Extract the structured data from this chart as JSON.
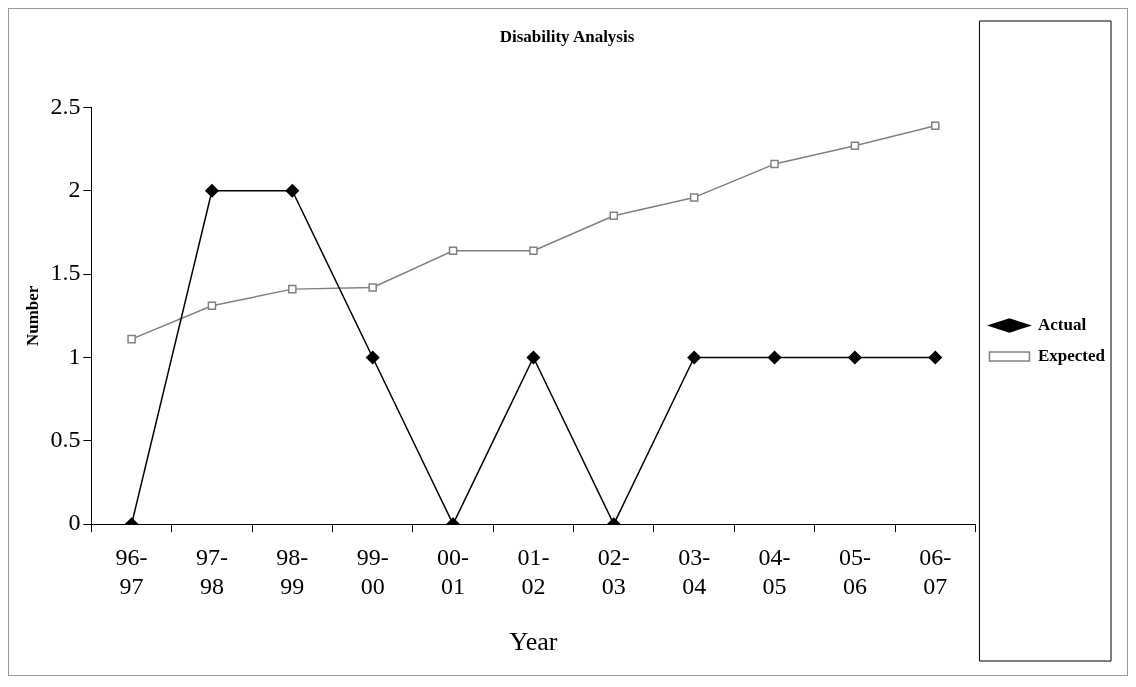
{
  "chart_data": {
    "type": "line",
    "title": "Disability Analysis",
    "xlabel": "Year",
    "ylabel": "Number",
    "categories": [
      "96-97",
      "97-98",
      "98-99",
      "99-00",
      "00-01",
      "01-02",
      "02-03",
      "03-04",
      "04-05",
      "05-06",
      "06-07"
    ],
    "series": [
      {
        "name": "Actual",
        "color": "#000000",
        "marker": "diamond",
        "values": [
          0,
          2,
          2,
          1,
          0,
          1,
          0,
          1,
          1,
          1,
          1
        ]
      },
      {
        "name": "Expected",
        "color": "#808080",
        "marker": "square",
        "values": [
          1.11,
          1.31,
          1.41,
          1.42,
          1.64,
          1.64,
          1.85,
          1.96,
          2.16,
          2.27,
          2.39
        ]
      }
    ],
    "ylim": [
      0,
      2.5
    ],
    "yticks": [
      0,
      0.5,
      1,
      1.5,
      2,
      2.5
    ],
    "grid": false,
    "legend": "right",
    "line_style": "solid"
  }
}
